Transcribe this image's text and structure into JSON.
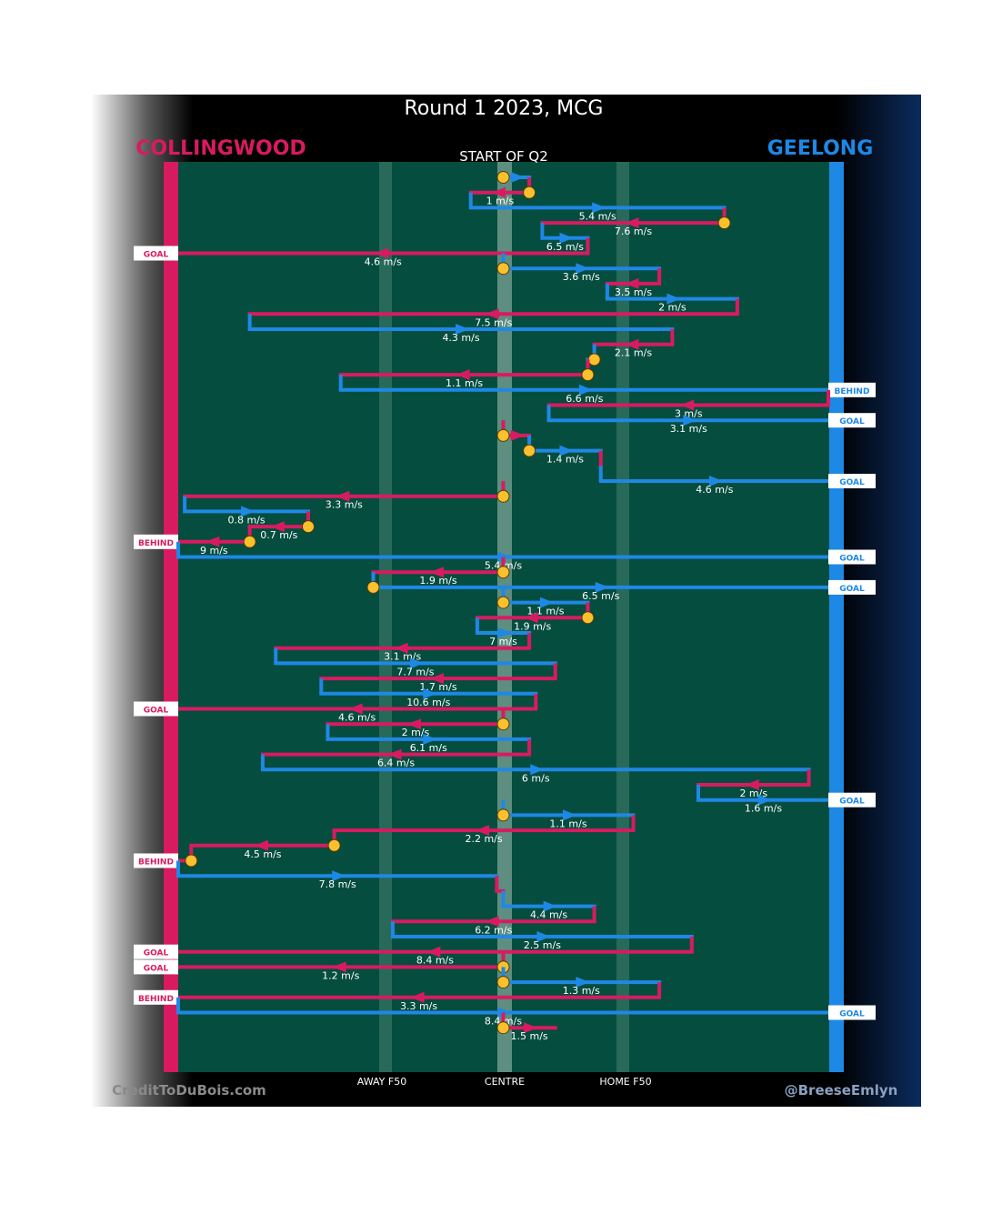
{
  "header": {
    "title": "Round 1 2023, MCG",
    "home_team": "COLLINGWOOD",
    "away_team": "GEELONG",
    "quarter_label": "START OF Q2"
  },
  "colors": {
    "collingwood": "#d81b60",
    "geelong": "#1e88e5",
    "field": "#054d3f",
    "ball": "#fbc02d"
  },
  "footer": {
    "left_credit": "CreditToDuBois.com",
    "right_credit": "@BreeseEmlyn",
    "axis_labels": [
      "AWAY F50",
      "CENTRE",
      "HOME F50"
    ]
  },
  "chart_data": {
    "type": "chain-flow",
    "title": "Round 1 2023, MCG",
    "subtitle": "START OF Q2",
    "x_axis": {
      "labels": [
        "AWAY F50",
        "CENTRE",
        "HOME F50"
      ],
      "range": [
        0,
        1
      ]
    },
    "chains": [
      {
        "team": "geelong",
        "from": 0.5,
        "to": 0.54,
        "speed": "",
        "start": true
      },
      {
        "team": "collingwood",
        "from": 0.54,
        "to": 0.45,
        "speed": "1 m/s",
        "start": true
      },
      {
        "team": "geelong",
        "from": 0.45,
        "to": 0.84,
        "speed": "5.4 m/s"
      },
      {
        "team": "collingwood",
        "from": 0.84,
        "to": 0.56,
        "speed": "7.6 m/s",
        "start": true
      },
      {
        "team": "geelong",
        "from": 0.56,
        "to": 0.63,
        "speed": "6.5 m/s"
      },
      {
        "team": "collingwood",
        "from": 0.63,
        "to": 0.0,
        "speed": "4.6 m/s",
        "outcome": "GOAL"
      },
      {
        "team": "geelong",
        "from": 0.5,
        "to": 0.74,
        "speed": "3.6 m/s",
        "start": true
      },
      {
        "team": "collingwood",
        "from": 0.74,
        "to": 0.66,
        "speed": "3.5 m/s"
      },
      {
        "team": "geelong",
        "from": 0.66,
        "to": 0.86,
        "speed": "2 m/s"
      },
      {
        "team": "collingwood",
        "from": 0.86,
        "to": 0.11,
        "speed": "7.5 m/s"
      },
      {
        "team": "geelong",
        "from": 0.11,
        "to": 0.76,
        "speed": "4.3 m/s"
      },
      {
        "team": "collingwood",
        "from": 0.76,
        "to": 0.64,
        "speed": "2.1 m/s"
      },
      {
        "team": "geelong",
        "from": 0.64,
        "to": 0.63,
        "speed": "",
        "start": true
      },
      {
        "team": "collingwood",
        "from": 0.63,
        "to": 0.25,
        "speed": "1.1 m/s",
        "start": true
      },
      {
        "team": "geelong",
        "from": 0.25,
        "to": 1.0,
        "speed": "6.6 m/s",
        "outcome": "BEHIND"
      },
      {
        "team": "collingwood",
        "from": 1.0,
        "to": 0.57,
        "speed": "3 m/s"
      },
      {
        "team": "geelong",
        "from": 0.57,
        "to": 1.0,
        "speed": "3.1 m/s",
        "outcome": "GOAL"
      },
      {
        "team": "collingwood",
        "from": 0.5,
        "to": 0.54,
        "speed": "",
        "start": true
      },
      {
        "team": "geelong",
        "from": 0.54,
        "to": 0.65,
        "speed": "1.4 m/s",
        "start": true
      },
      {
        "team": "collingwood",
        "from": 0.65,
        "to": 0.65,
        "speed": ""
      },
      {
        "team": "geelong",
        "from": 0.65,
        "to": 1.0,
        "speed": "4.6 m/s",
        "outcome": "GOAL"
      },
      {
        "team": "collingwood",
        "from": 0.5,
        "to": 0.01,
        "speed": "3.3 m/s",
        "start": true
      },
      {
        "team": "geelong",
        "from": 0.01,
        "to": 0.2,
        "speed": "0.8 m/s"
      },
      {
        "team": "collingwood",
        "from": 0.2,
        "to": 0.11,
        "speed": "0.7 m/s",
        "start": true
      },
      {
        "team": "collingwood",
        "from": 0.11,
        "to": 0.0,
        "speed": "9 m/s",
        "outcome": "BEHIND",
        "start": true
      },
      {
        "team": "geelong",
        "from": 0.0,
        "to": 1.0,
        "speed": "5.4 m/s",
        "outcome": "GOAL"
      },
      {
        "team": "collingwood",
        "from": 0.5,
        "to": 0.3,
        "speed": "1.9 m/s",
        "start": true
      },
      {
        "team": "geelong",
        "from": 0.3,
        "to": 1.0,
        "speed": "6.5 m/s",
        "outcome": "GOAL",
        "start": true
      },
      {
        "team": "geelong",
        "from": 0.5,
        "to": 0.63,
        "speed": "1.1 m/s",
        "start": true
      },
      {
        "team": "collingwood",
        "from": 0.63,
        "to": 0.46,
        "speed": "1.9 m/s",
        "start": true
      },
      {
        "team": "geelong",
        "from": 0.46,
        "to": 0.54,
        "speed": "7 m/s"
      },
      {
        "team": "collingwood",
        "from": 0.54,
        "to": 0.15,
        "speed": "3.1 m/s"
      },
      {
        "team": "geelong",
        "from": 0.15,
        "to": 0.58,
        "speed": "7.7 m/s"
      },
      {
        "team": "collingwood",
        "from": 0.58,
        "to": 0.22,
        "speed": "1.7 m/s"
      },
      {
        "team": "geelong",
        "from": 0.22,
        "to": 0.55,
        "speed": "10.6 m/s"
      },
      {
        "team": "collingwood",
        "from": 0.55,
        "to": 0.0,
        "speed": "4.6 m/s",
        "outcome": "GOAL"
      },
      {
        "team": "collingwood",
        "from": 0.5,
        "to": 0.23,
        "speed": "2 m/s",
        "start": true
      },
      {
        "team": "geelong",
        "from": 0.23,
        "to": 0.54,
        "speed": "6.1 m/s"
      },
      {
        "team": "collingwood",
        "from": 0.54,
        "to": 0.13,
        "speed": "6.4 m/s"
      },
      {
        "team": "geelong",
        "from": 0.13,
        "to": 0.97,
        "speed": "6 m/s"
      },
      {
        "team": "collingwood",
        "from": 0.97,
        "to": 0.8,
        "speed": "2 m/s"
      },
      {
        "team": "geelong",
        "from": 0.8,
        "to": 1.0,
        "speed": "1.6 m/s",
        "outcome": "GOAL"
      },
      {
        "team": "geelong",
        "from": 0.5,
        "to": 0.7,
        "speed": "1.1 m/s",
        "start": true
      },
      {
        "team": "collingwood",
        "from": 0.7,
        "to": 0.24,
        "speed": "2.2 m/s"
      },
      {
        "team": "collingwood",
        "from": 0.24,
        "to": 0.02,
        "speed": "4.5 m/s",
        "start": true
      },
      {
        "team": "collingwood",
        "from": 0.02,
        "to": 0.0,
        "speed": "",
        "outcome": "BEHIND",
        "start": true
      },
      {
        "team": "geelong",
        "from": 0.0,
        "to": 0.49,
        "speed": "7.8 m/s"
      },
      {
        "team": "collingwood",
        "from": 0.49,
        "to": 0.5,
        "speed": ""
      },
      {
        "team": "geelong",
        "from": 0.5,
        "to": 0.64,
        "speed": "4.4 m/s"
      },
      {
        "team": "collingwood",
        "from": 0.64,
        "to": 0.33,
        "speed": "6.2 m/s"
      },
      {
        "team": "geelong",
        "from": 0.33,
        "to": 0.79,
        "speed": "2.5 m/s"
      },
      {
        "team": "collingwood",
        "from": 0.79,
        "to": 0.0,
        "speed": "8.4 m/s",
        "outcome": "GOAL"
      },
      {
        "team": "collingwood",
        "from": 0.5,
        "to": 0.0,
        "speed": "1.2 m/s",
        "outcome": "GOAL",
        "start": true
      },
      {
        "team": "geelong",
        "from": 0.5,
        "to": 0.74,
        "speed": "1.3 m/s",
        "start": true
      },
      {
        "team": "collingwood",
        "from": 0.74,
        "to": 0.0,
        "speed": "3.3 m/s",
        "outcome": "BEHIND"
      },
      {
        "team": "geelong",
        "from": 0.0,
        "to": 1.0,
        "speed": "8.4 m/s",
        "outcome": "GOAL"
      },
      {
        "team": "collingwood",
        "from": 0.5,
        "to": 0.58,
        "speed": "1.5 m/s",
        "start": true
      }
    ]
  }
}
